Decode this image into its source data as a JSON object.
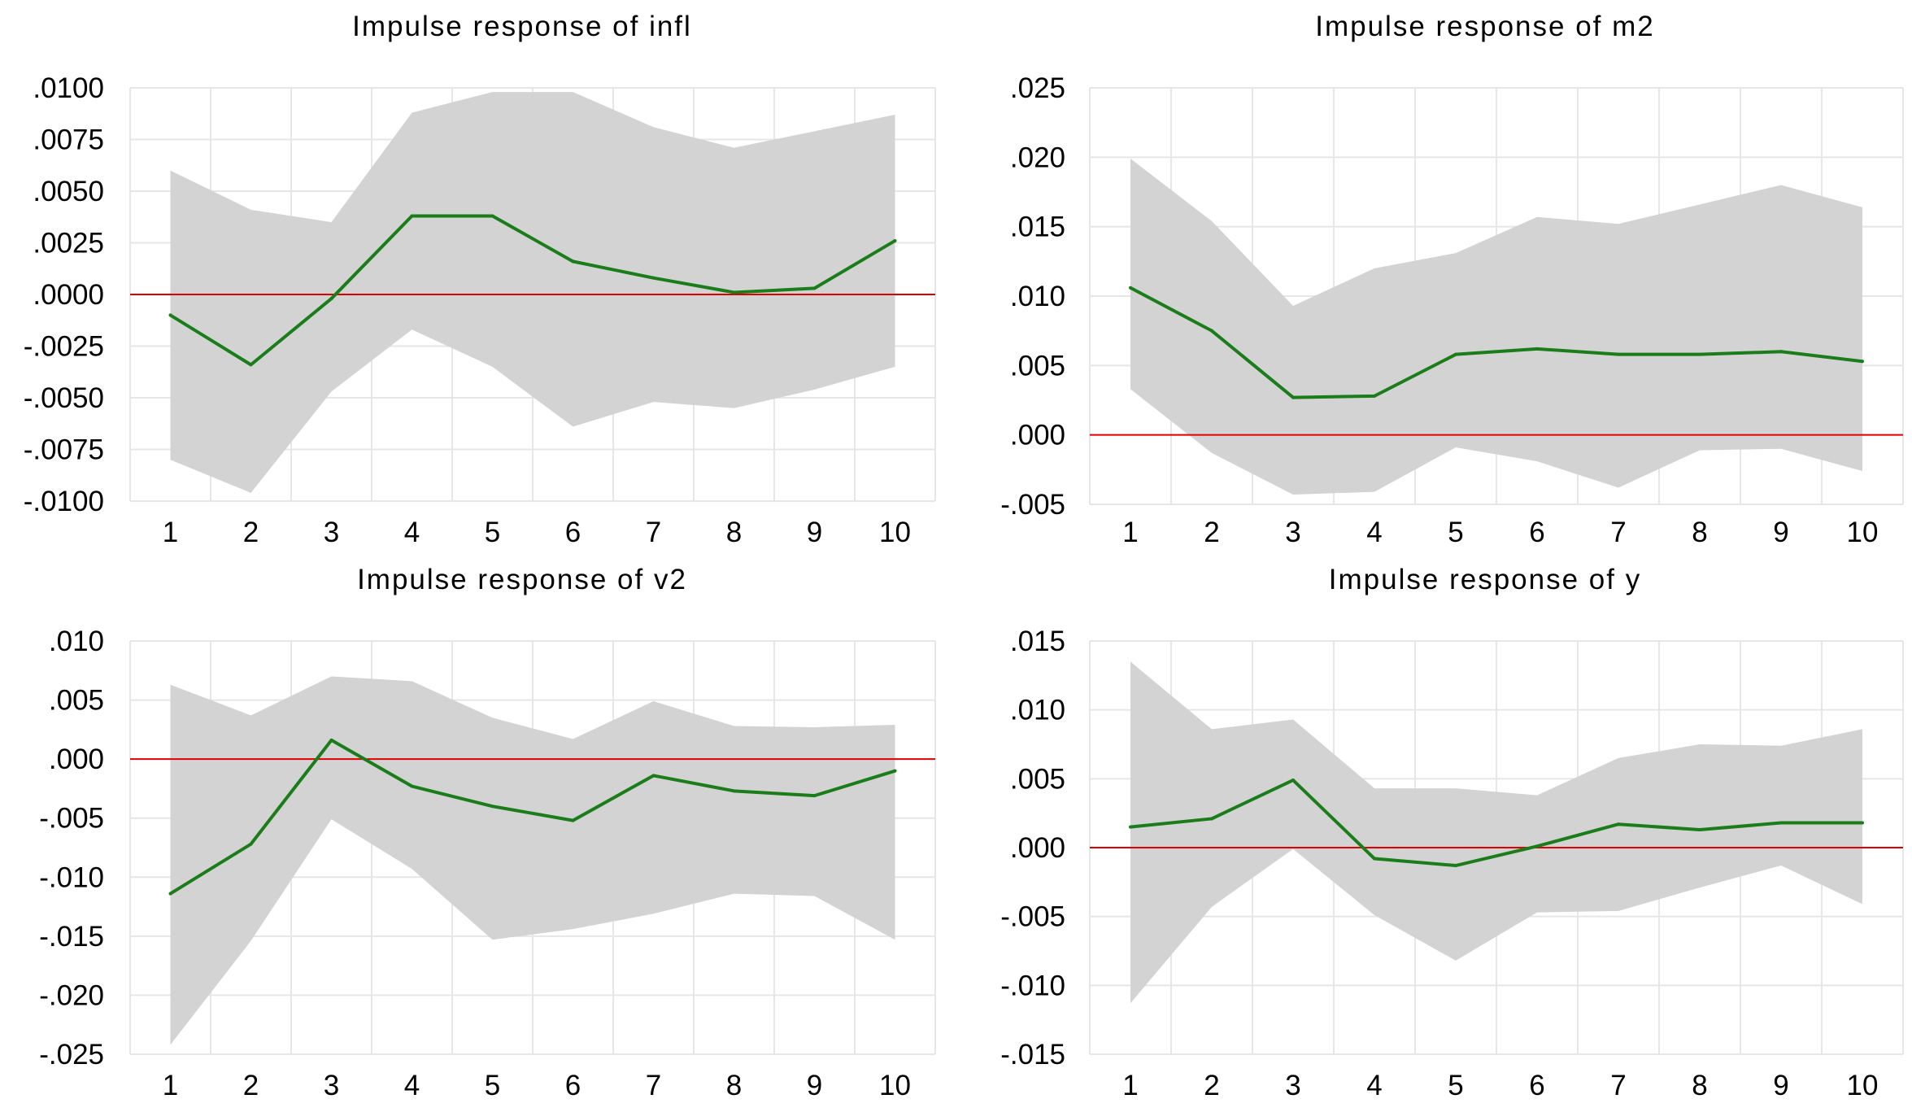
{
  "chart_data": [
    {
      "type": "line",
      "title": "Impulse response of infl",
      "x": [
        1,
        2,
        3,
        4,
        5,
        6,
        7,
        8,
        9,
        10
      ],
      "ylim": [
        -0.01,
        0.01
      ],
      "yticks": [
        0.01,
        0.0075,
        0.005,
        0.0025,
        0.0,
        -0.0025,
        -0.005,
        -0.0075,
        -0.01
      ],
      "ytick_labels": [
        ".0100",
        ".0075",
        ".0050",
        ".0025",
        ".0000",
        "-.0025",
        "-.0050",
        "-.0075",
        "-.0100"
      ],
      "series": [
        {
          "name": "response",
          "color": "#1a7d1a",
          "values": [
            -0.001,
            -0.0034,
            -0.0002,
            0.0038,
            0.0038,
            0.0016,
            0.0008,
            0.0001,
            0.0003,
            0.0026
          ]
        },
        {
          "name": "upper band",
          "color": "#d3d3d3",
          "values": [
            0.006,
            0.0041,
            0.0035,
            0.0088,
            0.0098,
            0.0098,
            0.0081,
            0.0071,
            0.0079,
            0.0087
          ]
        },
        {
          "name": "lower band",
          "color": "#d3d3d3",
          "values": [
            -0.008,
            -0.0096,
            -0.0047,
            -0.0017,
            -0.0035,
            -0.0064,
            -0.0052,
            -0.0055,
            -0.0046,
            -0.0035
          ]
        }
      ],
      "zero_line_color": "#e00000"
    },
    {
      "type": "line",
      "title": "Impulse response of m2",
      "x": [
        1,
        2,
        3,
        4,
        5,
        6,
        7,
        8,
        9,
        10
      ],
      "ylim": [
        -0.005,
        0.025
      ],
      "yticks": [
        0.025,
        0.02,
        0.015,
        0.01,
        0.005,
        0.0,
        -0.005
      ],
      "ytick_labels": [
        ".025",
        ".020",
        ".015",
        ".010",
        ".005",
        ".000",
        "-.005"
      ],
      "series": [
        {
          "name": "response",
          "color": "#1a7d1a",
          "values": [
            0.0106,
            0.0075,
            0.0027,
            0.0028,
            0.0058,
            0.0062,
            0.0058,
            0.0058,
            0.006,
            0.0053
          ]
        },
        {
          "name": "upper band",
          "color": "#d3d3d3",
          "values": [
            0.0199,
            0.0154,
            0.0093,
            0.012,
            0.0131,
            0.0157,
            0.0152,
            0.0166,
            0.018,
            0.0164
          ]
        },
        {
          "name": "lower band",
          "color": "#d3d3d3",
          "values": [
            0.0033,
            -0.0013,
            -0.0043,
            -0.0041,
            -0.0009,
            -0.0019,
            -0.0038,
            -0.0011,
            -0.001,
            -0.0026
          ]
        }
      ],
      "zero_line_color": "#e00000"
    },
    {
      "type": "line",
      "title": "Impulse response of v2",
      "x": [
        1,
        2,
        3,
        4,
        5,
        6,
        7,
        8,
        9,
        10
      ],
      "ylim": [
        -0.025,
        0.01
      ],
      "yticks": [
        0.01,
        0.005,
        0.0,
        -0.005,
        -0.01,
        -0.015,
        -0.02,
        -0.025
      ],
      "ytick_labels": [
        ".010",
        ".005",
        ".000",
        "-.005",
        "-.010",
        "-.015",
        "-.020",
        "-.025"
      ],
      "series": [
        {
          "name": "response",
          "color": "#1a7d1a",
          "values": [
            -0.0114,
            -0.0072,
            0.0016,
            -0.0023,
            -0.004,
            -0.0052,
            -0.0014,
            -0.0027,
            -0.0031,
            -0.001
          ]
        },
        {
          "name": "upper band",
          "color": "#d3d3d3",
          "values": [
            0.0063,
            0.0037,
            0.007,
            0.0066,
            0.0035,
            0.0017,
            0.0049,
            0.0028,
            0.0027,
            0.0029
          ]
        },
        {
          "name": "lower band",
          "color": "#d3d3d3",
          "values": [
            -0.0242,
            -0.0154,
            -0.0051,
            -0.0093,
            -0.0153,
            -0.0144,
            -0.0131,
            -0.0114,
            -0.0116,
            -0.0153
          ]
        }
      ],
      "zero_line_color": "#e00000"
    },
    {
      "type": "line",
      "title": "Impulse response of y",
      "x": [
        1,
        2,
        3,
        4,
        5,
        6,
        7,
        8,
        9,
        10
      ],
      "ylim": [
        -0.015,
        0.015
      ],
      "yticks": [
        0.015,
        0.01,
        0.005,
        0.0,
        -0.005,
        -0.01,
        -0.015
      ],
      "ytick_labels": [
        ".015",
        ".010",
        ".005",
        ".000",
        "-.005",
        "-.010",
        "-.015"
      ],
      "series": [
        {
          "name": "response",
          "color": "#1a7d1a",
          "values": [
            0.0015,
            0.0021,
            0.0049,
            -0.0008,
            -0.0013,
            0.0001,
            0.0017,
            0.0013,
            0.0018,
            0.0018
          ]
        },
        {
          "name": "upper band",
          "color": "#d3d3d3",
          "values": [
            0.0135,
            0.0086,
            0.0093,
            0.0043,
            0.0043,
            0.0038,
            0.0065,
            0.0075,
            0.0074,
            0.0086
          ]
        },
        {
          "name": "lower band",
          "color": "#d3d3d3",
          "values": [
            -0.0113,
            -0.0043,
            -0.0001,
            -0.0049,
            -0.0082,
            -0.0047,
            -0.0046,
            -0.0029,
            -0.0013,
            -0.0041
          ]
        }
      ],
      "zero_line_color": "#e00000"
    }
  ]
}
